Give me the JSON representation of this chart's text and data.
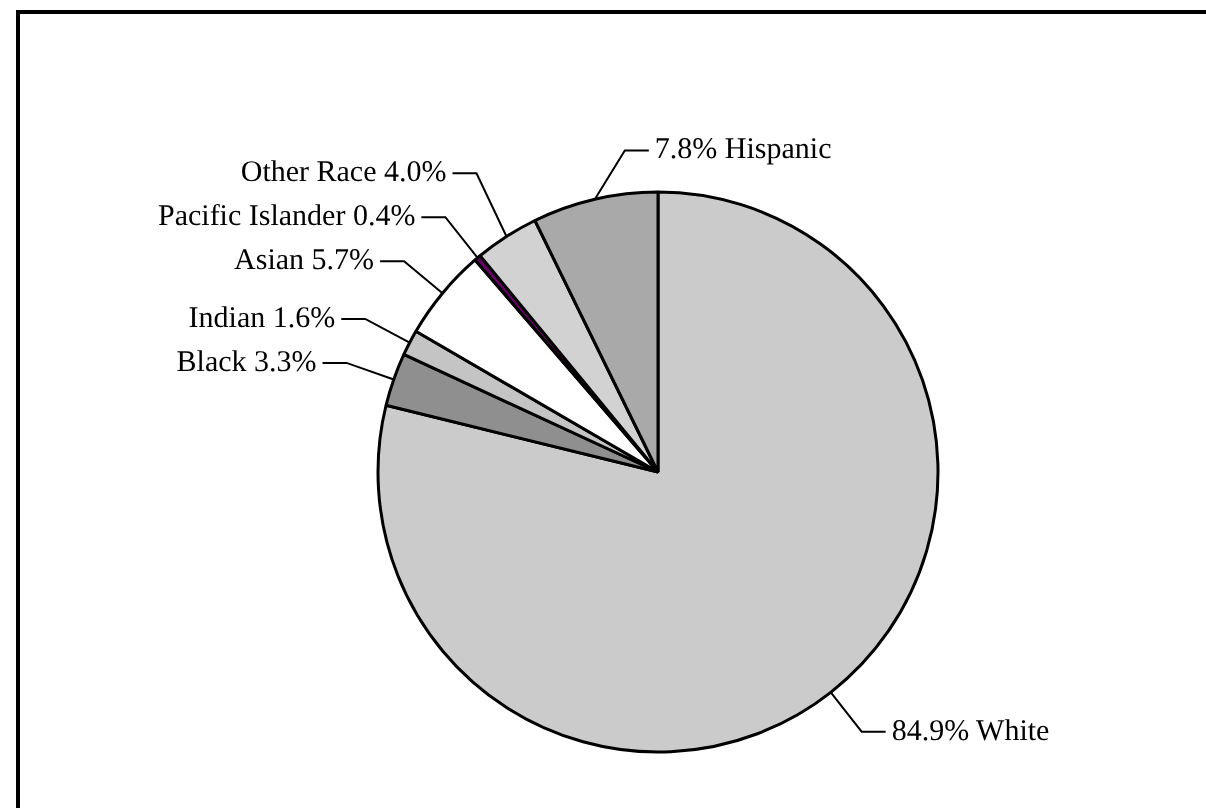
{
  "chart_data": {
    "type": "pie",
    "categories": [
      "White",
      "Black",
      "Indian",
      "Asian",
      "Pacific Islander",
      "Other Race",
      "Hispanic"
    ],
    "values": [
      84.9,
      3.3,
      1.6,
      5.7,
      0.4,
      4.0,
      7.8
    ],
    "colors": [
      "#cbcbcb",
      "#8f8f8f",
      "#c4c4c4",
      "#ffffff",
      "#660066",
      "#d2d2d2",
      "#a9a9a9"
    ],
    "value_labels": [
      "84.9%",
      "3.3%",
      "1.6%",
      "5.7%",
      "0.4%",
      "4.0%",
      "7.8%"
    ]
  }
}
